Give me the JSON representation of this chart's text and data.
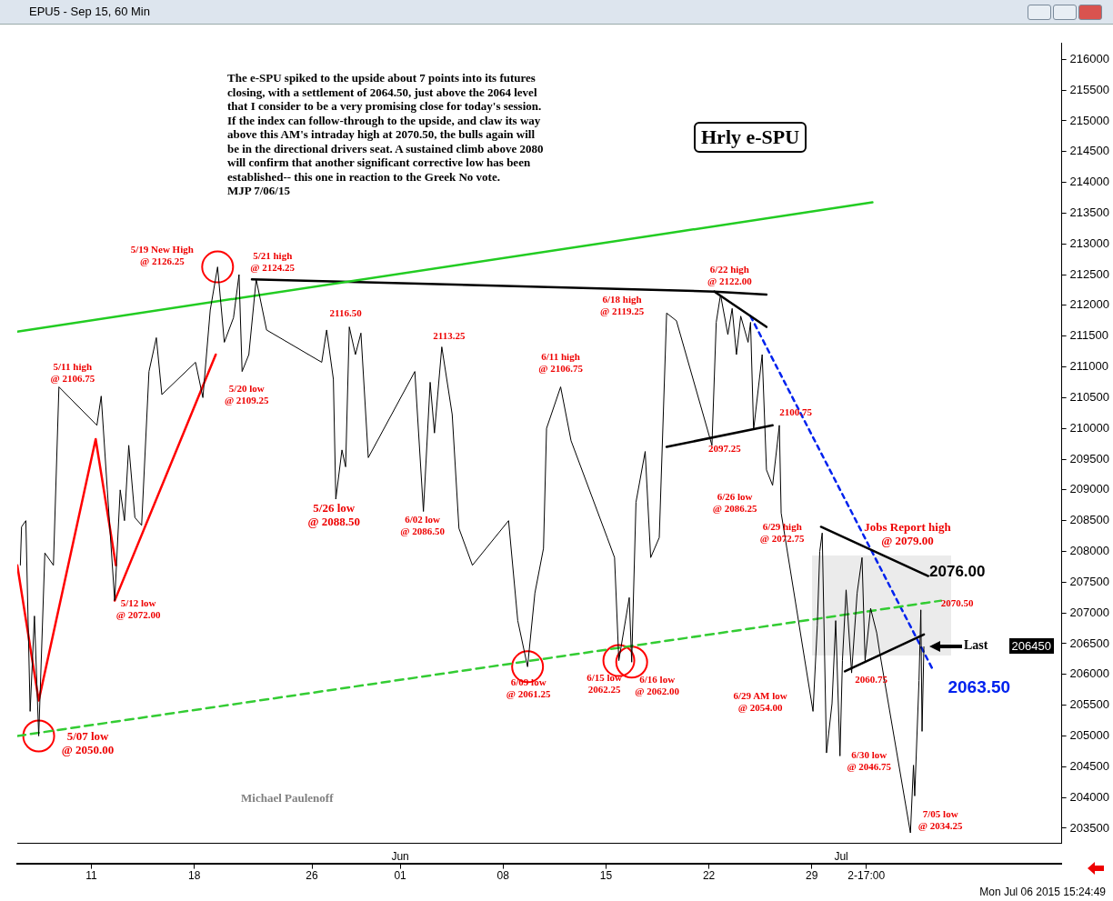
{
  "chart_data": {
    "type": "line",
    "title": "EPU5 - Sep 15, 60 Min",
    "xlim": [
      "2015-05-05T23:00",
      "2015-07-16T00:00"
    ],
    "xticks": [
      {
        "value": "2015-05-11",
        "label": "11"
      },
      {
        "value": "2015-05-18",
        "label": "18"
      },
      {
        "value": "2015-05-26",
        "label": "26"
      },
      {
        "value": "2015-06-01",
        "label": "01"
      },
      {
        "value": "2015-06-08",
        "label": "08"
      },
      {
        "value": "2015-06-15",
        "label": "15"
      },
      {
        "value": "2015-06-22",
        "label": "22"
      },
      {
        "value": "2015-06-29",
        "label": "29"
      },
      {
        "value": "2015-07-02T17:00",
        "label": "2-17:00"
      }
    ],
    "x2lim": [
      "2015-05-05T23:00",
      "2015-07-16T00:00"
    ],
    "x2ticks": [
      {
        "value": "2015-06-01",
        "label": "Jun"
      },
      {
        "value": "2015-07-01",
        "label": "Jul"
      }
    ],
    "ylim": [
      203260,
      216270
    ],
    "yticks": [
      203500,
      204000,
      204500,
      205000,
      205500,
      206000,
      206500,
      207000,
      207500,
      208000,
      208500,
      209000,
      209500,
      210000,
      210500,
      211000,
      211500,
      212000,
      212500,
      213000,
      213500,
      214000,
      214500,
      215000,
      215500,
      216000
    ],
    "grid": false,
    "legend": false,
    "series": [
      {
        "color": "#000000",
        "marker": "none",
        "line_style": "solid",
        "x": [
          "2015-05-06T04:00",
          "2015-05-06T06:00",
          "2015-05-06T13:00",
          "2015-05-06T20:00",
          "2015-05-07T03:00",
          "2015-05-07T10:00",
          "2015-05-07T20:00",
          "2015-05-08T10:00",
          "2015-05-08T19:00",
          "2015-05-11T09:00",
          "2015-05-11T16:00",
          "2015-05-12T02:00",
          "2015-05-12T14:00",
          "2015-05-12T23:00",
          "2015-05-13T06:00",
          "2015-05-13T13:00",
          "2015-05-13T23:00",
          "2015-05-14T10:00",
          "2015-05-14T22:00",
          "2015-05-15T10:00",
          "2015-05-15T19:00",
          "2015-05-18T02:00",
          "2015-05-18T14:00",
          "2015-05-19T02:00",
          "2015-05-19T14:00",
          "2015-05-20T01:00",
          "2015-05-20T16:00",
          "2015-05-21T01:00",
          "2015-05-21T06:00",
          "2015-05-21T17:00",
          "2015-05-22T05:00",
          "2015-05-22T22:00",
          "2015-05-26T16:00",
          "2015-05-27T00:00",
          "2015-05-27T11:00",
          "2015-05-27T15:00",
          "2015-05-28T01:00",
          "2015-05-28T07:00",
          "2015-05-28T13:00",
          "2015-05-28T23:00",
          "2015-05-29T08:00",
          "2015-05-29T20:00",
          "2015-06-02T00:00",
          "2015-06-02T14:00",
          "2015-06-03T01:00",
          "2015-06-03T08:00",
          "2015-06-03T20:00",
          "2015-06-04T13:00",
          "2015-06-05T00:00",
          "2015-06-05T22:00",
          "2015-06-08T09:00",
          "2015-06-09T00:00",
          "2015-06-09T16:00",
          "2015-06-10T04:00",
          "2015-06-10T18:00",
          "2015-06-10T23:00",
          "2015-06-11T22:00",
          "2015-06-12T15:00",
          "2015-06-15T02:00",
          "2015-06-15T14:00",
          "2015-06-15T21:00",
          "2015-06-16T14:00",
          "2015-06-16T18:00",
          "2015-06-17T01:00",
          "2015-06-17T16:00",
          "2015-06-18T01:00",
          "2015-06-18T15:00",
          "2015-06-19T03:00",
          "2015-06-19T19:00",
          "2015-06-22T05:00",
          "2015-06-22T12:00",
          "2015-06-22T19:00",
          "2015-06-23T07:00",
          "2015-06-23T14:00",
          "2015-06-23T21:00",
          "2015-06-24T04:00",
          "2015-06-24T16:00",
          "2015-06-24T20:00",
          "2015-06-25T01:00",
          "2015-06-25T15:00",
          "2015-06-25T22:00",
          "2015-06-26T08:00",
          "2015-06-26T19:00",
          "2015-06-26T22:00",
          "2015-06-29T02:00",
          "2015-06-29T09:00",
          "2015-06-29T13:00",
          "2015-06-29T17:00",
          "2015-06-30T00:00",
          "2015-06-30T09:00",
          "2015-06-30T15:00",
          "2015-06-30T22:00",
          "2015-07-01T02:00",
          "2015-07-01T08:00",
          "2015-07-01T17:00",
          "2015-07-02T02:00",
          "2015-07-02T10:00",
          "2015-07-02T15:00",
          "2015-07-03T00:00",
          "2015-07-03T10:00",
          "2015-07-03T15:00",
          "2015-07-05T17:00",
          "2015-07-05T22:00",
          "2015-07-06T00:00",
          "2015-07-06T07:00",
          "2015-07-06T10:00",
          "2015-07-06T12:00",
          "2015-07-06T15:00"
        ],
        "values": [
          207775,
          208400,
          208500,
          205400,
          206950,
          205000,
          207975,
          207775,
          210675,
          210050,
          210525,
          209000,
          207200,
          209000,
          208500,
          209725,
          208550,
          208425,
          210925,
          211475,
          210550,
          211075,
          210500,
          211925,
          212625,
          211400,
          211800,
          212500,
          210925,
          211200,
          212425,
          211600,
          211075,
          211600,
          210800,
          208850,
          209650,
          209375,
          211650,
          211200,
          211550,
          209525,
          210925,
          208650,
          210750,
          209925,
          211325,
          210225,
          208375,
          207775,
          208500,
          206875,
          206125,
          207325,
          208050,
          210000,
          210675,
          209800,
          208225,
          207900,
          206225,
          207250,
          206200,
          208800,
          209625,
          207900,
          208225,
          211875,
          211750,
          209725,
          211725,
          212175,
          211525,
          211950,
          211200,
          211825,
          211400,
          211725,
          209975,
          211200,
          209325,
          209075,
          210050,
          208625,
          205400,
          206800,
          208000,
          208300,
          204725,
          205525,
          206875,
          204675,
          206225,
          207375,
          206025,
          207325,
          207900,
          206225,
          207075,
          206675,
          206350,
          203425,
          204525,
          204025,
          205900,
          207050,
          205075,
          206450
        ]
      },
      {
        "type": "line",
        "color": "#22cc22",
        "marker": "none",
        "line_style": "solid",
        "x": [
          "2015-05-05T23:00",
          "2015-07-03T03:00"
        ],
        "values": [
          211575,
          213675
        ]
      },
      {
        "type": "line",
        "color": "#33cc33",
        "marker": "none",
        "line_style": "dashed",
        "x": [
          "2015-05-05T23:00",
          "2015-07-07T19:00"
        ],
        "values": [
          205000,
          207200
        ]
      },
      {
        "type": "line",
        "color": "#000000",
        "marker": "none",
        "line_style": "solid",
        "x": [
          "2015-05-21T22:00",
          "2015-06-22T09:00",
          "2015-06-25T22:00"
        ],
        "values": [
          212425,
          212225,
          212175
        ]
      },
      {
        "type": "line",
        "color": "#000000",
        "marker": "none",
        "line_style": "solid",
        "x": [
          "2015-06-22T09:00",
          "2015-06-25T22:00"
        ],
        "values": [
          212225,
          211650
        ]
      },
      {
        "type": "line",
        "color": "#000000",
        "marker": "none",
        "line_style": "solid",
        "x": [
          "2015-06-19T03:00",
          "2015-06-26T08:00"
        ],
        "values": [
          209700,
          210050
        ]
      },
      {
        "type": "line",
        "color": "#000000",
        "marker": "none",
        "line_style": "solid",
        "x": [
          "2015-06-29T15:00",
          "2015-07-06T22:00"
        ],
        "values": [
          208400,
          207600
        ]
      },
      {
        "type": "line",
        "color": "#000000",
        "marker": "none",
        "line_style": "solid",
        "x": [
          "2015-07-01T06:00",
          "2015-07-06T15:00"
        ],
        "values": [
          206050,
          206650
        ]
      },
      {
        "type": "line",
        "color": "#0022ee",
        "marker": "none",
        "line_style": "dotted",
        "x": [
          "2015-06-24T20:00",
          "2015-07-07T07:00"
        ],
        "values": [
          211825,
          206050
        ]
      },
      {
        "type": "line",
        "color": "#ff0000",
        "marker": "none",
        "line_style": "solid",
        "x": [
          "2015-05-05T23:00",
          "2015-05-07T10:00",
          "2015-05-11T07:00",
          "2015-05-12T16:00"
        ],
        "values": [
          207775,
          205575,
          209825,
          207775
        ]
      },
      {
        "type": "line",
        "color": "#ff0000",
        "marker": "none",
        "line_style": "solid",
        "x": [
          "2015-05-12T14:00",
          "2015-05-19T11:00"
        ],
        "values": [
          207200,
          211200
        ]
      },
      {
        "type": "scatter",
        "color": "#ff0000",
        "marker": "circle",
        "x": [
          "2015-05-07T10:00",
          "2015-05-19T14:00",
          "2015-06-09T16:00",
          "2015-06-15T21:00",
          "2015-06-16T18:00"
        ],
        "values": [
          205000,
          212625,
          206125,
          206225,
          206200
        ]
      }
    ],
    "annotations": [
      {
        "text": "5/19 New High\n@ 2126.25",
        "x": "2015-05-19T14:00",
        "y": 212625
      },
      {
        "text": "5/21 high\n@ 2124.25",
        "x": "2015-05-22T05:00",
        "y": 212425
      },
      {
        "text": "5/11 high\n@ 2106.75",
        "x": "2015-05-08T19:00",
        "y": 210675
      },
      {
        "text": "5/20 low\n@ 2109.25",
        "x": "2015-05-21T06:00",
        "y": 210925
      },
      {
        "text": "5/12 low\n@ 2072.00",
        "x": "2015-05-12T14:00",
        "y": 207200
      },
      {
        "text": "5/07 low\n@ 2050.00",
        "x": "2015-05-07T10:00",
        "y": 205000
      },
      {
        "text": "2116.50",
        "x": "2015-05-28T13:00",
        "y": 211650
      },
      {
        "text": "5/26 low\n@ 2088.50",
        "x": "2015-05-27T15:00",
        "y": 208850
      },
      {
        "text": "2113.25",
        "x": "2015-06-03T20:00",
        "y": 211325
      },
      {
        "text": "6/02 low\n@ 2086.50",
        "x": "2015-06-02T14:00",
        "y": 208650
      },
      {
        "text": "6/11 high\n@ 2106.75",
        "x": "2015-06-11T22:00",
        "y": 210675
      },
      {
        "text": "6/09 low\n@ 2061.25",
        "x": "2015-06-09T16:00",
        "y": 206125
      },
      {
        "text": "6/15 low\n2062.25",
        "x": "2015-06-15T21:00",
        "y": 206225
      },
      {
        "text": "6/16 low\n@ 2062.00",
        "x": "2015-06-16T18:00",
        "y": 206200
      },
      {
        "text": "6/18 high\n@ 2119.25",
        "x": "2015-06-19T03:00",
        "y": 211875
      },
      {
        "text": "6/22 high\n@ 2122.00",
        "x": "2015-06-22T19:00",
        "y": 212175
      },
      {
        "text": "2097.25",
        "x": "2015-06-22T05:00",
        "y": 209725
      },
      {
        "text": "2100.75",
        "x": "2015-06-26T19:00",
        "y": 210050
      },
      {
        "text": "6/26 low\n@ 2086.25",
        "x": "2015-06-26T22:00",
        "y": 208625
      },
      {
        "text": "6/29 high\n@ 2072.75",
        "x": "2015-06-29T17:00",
        "y": 208300
      },
      {
        "text": "Jobs Report high\n@ 2079.00",
        "x": "2015-07-02T10:00",
        "y": 207900
      },
      {
        "text": "2076.00",
        "x": "2015-07-06T22:00",
        "y": 207600
      },
      {
        "text": "2070.50",
        "x": "2015-07-06T10:00",
        "y": 207050
      },
      {
        "text": "2063.50",
        "x": "2015-07-07T07:00",
        "y": 206050
      },
      {
        "text": "2060.75",
        "x": "2015-07-01T06:00",
        "y": 206050
      },
      {
        "text": "6/29 AM low\n@ 2054.00",
        "x": "2015-06-29T02:00",
        "y": 205400
      },
      {
        "text": "6/30 low\n@ 2046.75",
        "x": "2015-06-30T22:00",
        "y": 204675
      },
      {
        "text": "7/05 low\n@ 2034.25",
        "x": "2015-07-05T17:00",
        "y": 203425
      },
      "The e-SPU spiked to the upside about 7 points into its futures\nclosing, with a settlement of 2064.50, just above the 2064 level\nthat I consider to be a very promising close for today's session.\nIf the index can follow-through to the upside, and claw its way\nabove this AM's intraday high at 2070.50, the bulls again will\nbe in the directional drivers seat. A sustained climb above 2080\nwill confirm that another significant corrective low has been\nestablished-- this one in reaction to the Greek No vote.\nMJP 7/06/15",
      "Hrly e-SPU",
      "Michael Paulenoff",
      "Mon Jul 06 2015 15:24:49",
      "Last",
      "206450"
    ]
  }
}
